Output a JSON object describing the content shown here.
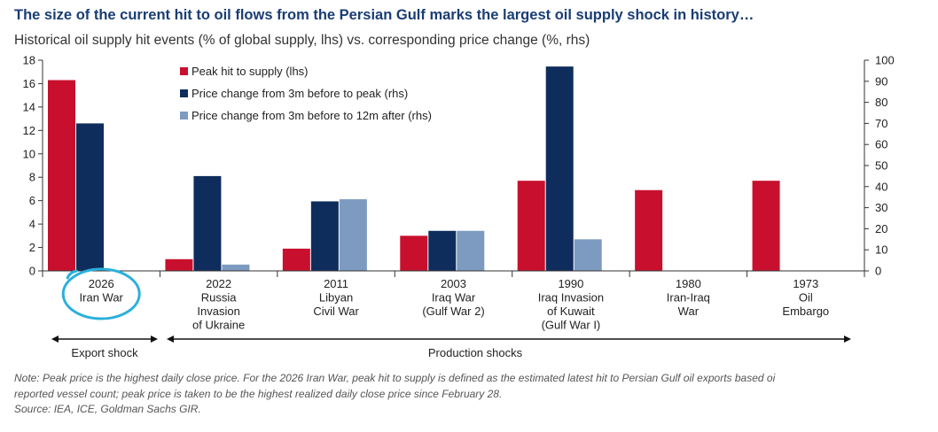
{
  "title": "The size of the current hit to oil flows from the Persian Gulf marks the largest oil supply shock in history…",
  "subtitle": "Historical oil supply hit events (% of global supply, lhs) vs. corresponding price change (%, rhs)",
  "chart_data": {
    "type": "bar",
    "categories": [
      [
        "2026",
        "Iran War"
      ],
      [
        "2022",
        "Russia",
        "Invasion",
        "of Ukraine"
      ],
      [
        "2011",
        "Libyan",
        "Civil War"
      ],
      [
        "2003",
        "Iraq War",
        "(Gulf War 2)"
      ],
      [
        "1990",
        "Iraq Invasion",
        "of Kuwait",
        "(Gulf War I)"
      ],
      [
        "1980",
        "Iran-Iraq",
        "War"
      ],
      [
        "1973",
        "Oil",
        "Embargo"
      ]
    ],
    "series": [
      {
        "name": "Peak hit to supply (lhs)",
        "axis": "left",
        "color": "#c8102e",
        "values": [
          16.3,
          1.0,
          1.9,
          3.0,
          7.7,
          6.9,
          7.7
        ]
      },
      {
        "name": "Price change from 3m before to peak (rhs)",
        "axis": "right",
        "color": "#0f2d5c",
        "values": [
          70,
          45,
          33,
          19,
          97,
          null,
          null
        ]
      },
      {
        "name": "Price change from 3m before to 12m after (rhs)",
        "axis": "right",
        "color": "#7d9bc1",
        "values": [
          null,
          3,
          34,
          19,
          15,
          null,
          null
        ]
      }
    ],
    "left_axis": {
      "min": 0,
      "max": 18,
      "ticks": [
        0,
        2,
        4,
        6,
        8,
        10,
        12,
        14,
        16,
        18
      ]
    },
    "right_axis": {
      "min": 0,
      "max": 100,
      "ticks": [
        0,
        10,
        20,
        30,
        40,
        50,
        60,
        70,
        80,
        90,
        100
      ]
    },
    "legend_position": "top-left",
    "highlighted_category": "2026 Iran War",
    "highlight_color": "#2bb0dc",
    "groupings": [
      {
        "label": "Export shock",
        "from": 0,
        "to": 0
      },
      {
        "label": "Production shocks",
        "from": 1,
        "to": 6
      }
    ]
  },
  "note_lines": [
    "Note: Peak price is the highest daily close price. For the 2026 Iran War, peak hit to supply is defined as the estimated latest hit to Persian Gulf oil exports based oi",
    "reported vessel count; peak price is taken to be the highest realized daily close price since February 28.",
    "Source: IEA, ICE, Goldman Sachs GIR."
  ]
}
